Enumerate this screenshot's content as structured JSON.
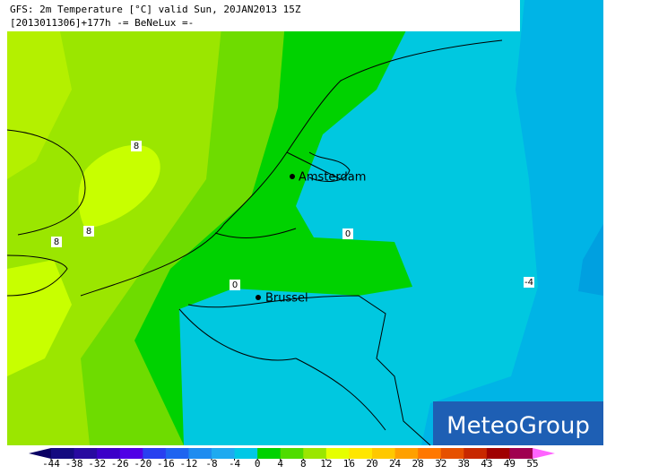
{
  "header": {
    "line1": "GFS: 2m Temperature [°C] valid Sun, 20JAN2013 15Z",
    "line2": "[2013011306]+177h  -= BeNeLux =-"
  },
  "cities": [
    {
      "label": "Amsterdam"
    },
    {
      "label": "Brussel"
    }
  ],
  "contour_labels": [
    "8",
    "8",
    "8",
    "0",
    "0",
    "-4"
  ],
  "logo": "MeteoGroup",
  "colorbar": {
    "ticks": [
      -44,
      -38,
      -32,
      -26,
      -20,
      -16,
      -12,
      -8,
      -4,
      0,
      4,
      8,
      12,
      16,
      20,
      24,
      28,
      32,
      38,
      43,
      49,
      55
    ],
    "colors": [
      "#140a80",
      "#280aa0",
      "#3c00c8",
      "#5000e6",
      "#2840f0",
      "#1e64f0",
      "#1e8cf0",
      "#1eaaf0",
      "#00c8e6",
      "#00d200",
      "#50dc00",
      "#9be600",
      "#e6ff00",
      "#ffe600",
      "#ffc800",
      "#ffa000",
      "#ff7800",
      "#e65000",
      "#c82800",
      "#a00000",
      "#a00050"
    ],
    "low_color": "#0a0064",
    "high_color": "#ff64ff"
  }
}
